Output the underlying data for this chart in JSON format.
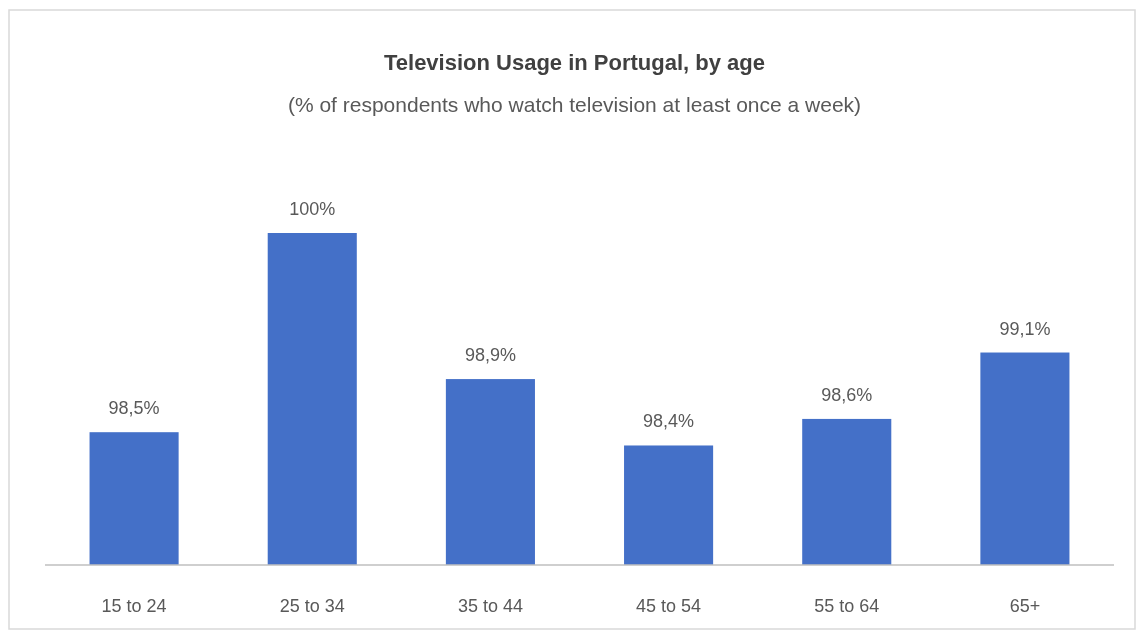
{
  "chart_data": {
    "type": "bar",
    "title": "Television Usage in Portugal, by age",
    "subtitle": "(% of respondents who watch television at least once a week)",
    "categories": [
      "15 to 24",
      "25 to 34",
      "35 to 44",
      "45 to 54",
      "55 to 64",
      "65+"
    ],
    "values": [
      98.5,
      100,
      98.9,
      98.4,
      98.6,
      99.1
    ],
    "value_labels": [
      "98,5%",
      "100%",
      "98,9%",
      "98,4%",
      "98,6%",
      "99,1%"
    ],
    "color": "#4470c8",
    "ylim": [
      97.5,
      100
    ]
  }
}
